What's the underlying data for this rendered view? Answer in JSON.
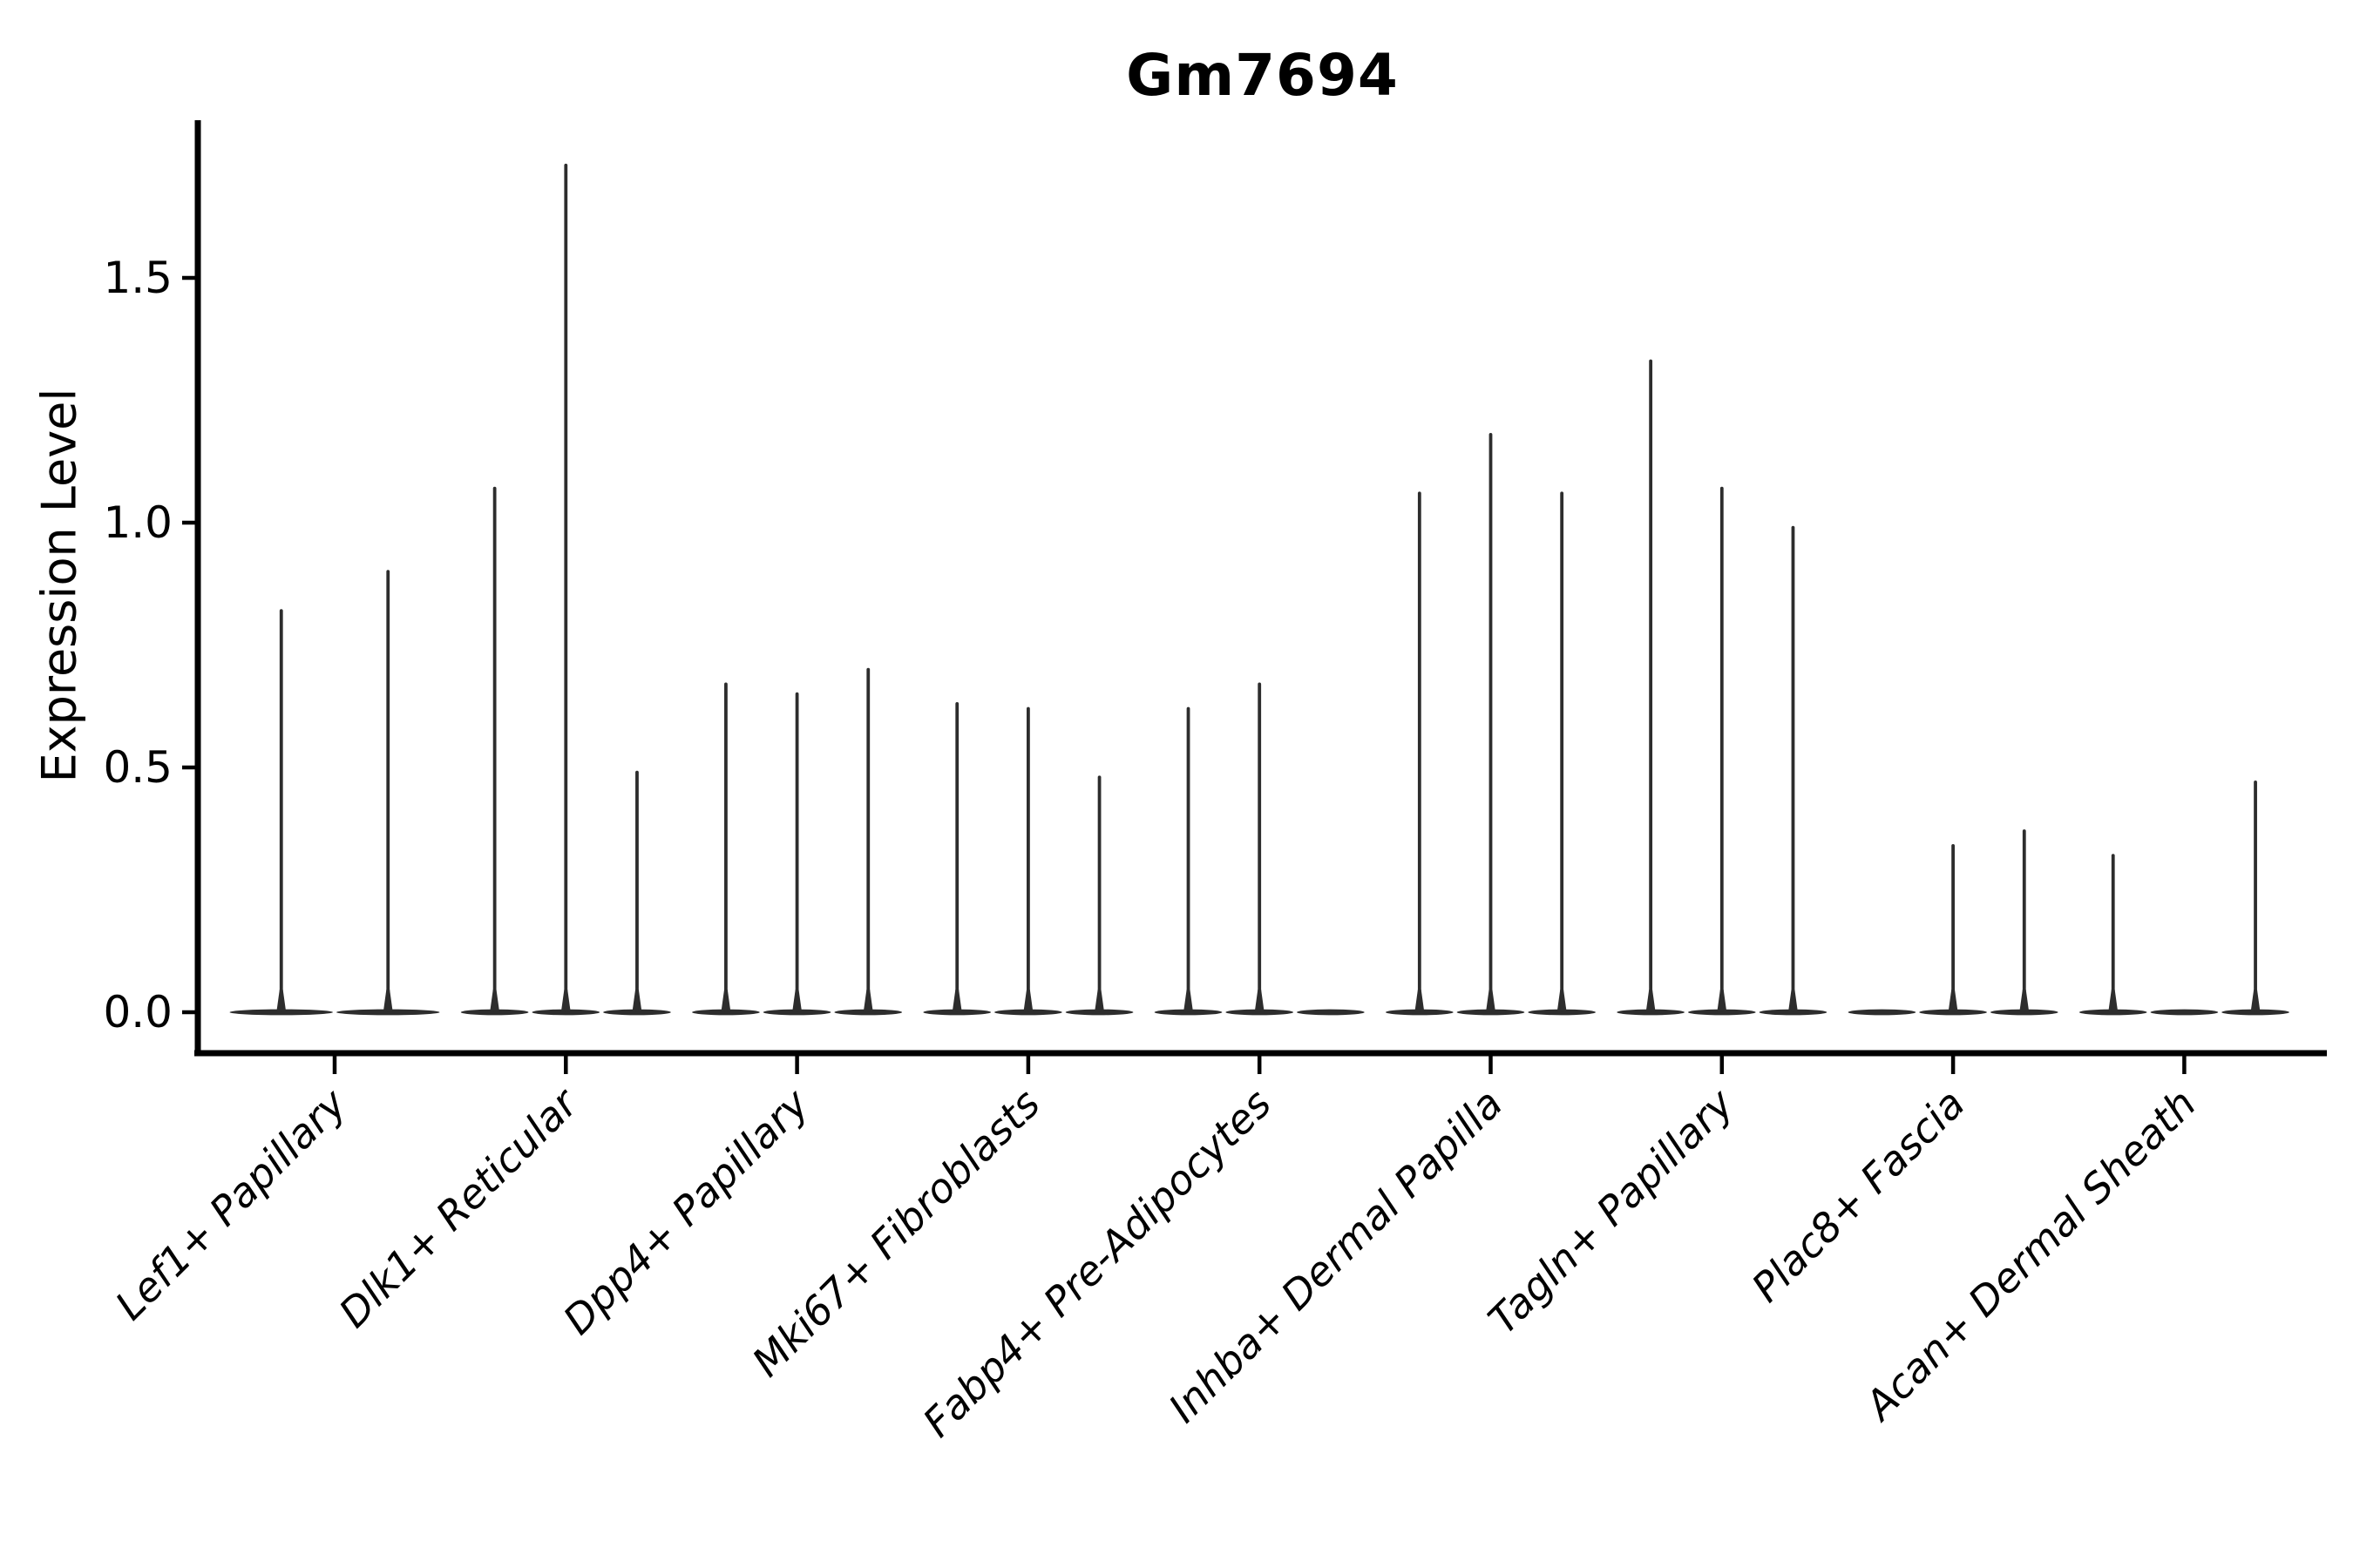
{
  "title": "Gm7694",
  "chart_data": {
    "type": "violin",
    "title": "Gm7694",
    "ylabel": "Expression Level",
    "xlabel": "",
    "ylim": [
      0,
      1.82
    ],
    "ytick_values": [
      0,
      0.5,
      1.0,
      1.5
    ],
    "ytick_labels": [
      "0.0",
      "0.5",
      "1.0",
      "1.5"
    ],
    "grid": false,
    "legend": "none",
    "categories": [
      "Lef1+ Papillary",
      "Dlk1+ Reticular",
      "Dpp4+ Papillary",
      "Mki67+ Fibroblasts",
      "Fabp4+ Pre-Adipocytes",
      "Inhba+ Dermal Papilla",
      "Tagln+ Papillary",
      "Plac8+ Fascia",
      "Acan+ Dermal Sheath"
    ],
    "violin_maxima_per_category": [
      [
        0.82,
        0.9
      ],
      [
        1.07,
        1.73,
        0.49
      ],
      [
        0.67,
        0.65,
        0.7
      ],
      [
        0.63,
        0.62,
        0.48
      ],
      [
        0.62,
        0.67,
        0.0
      ],
      [
        1.06,
        1.18,
        1.06
      ],
      [
        1.33,
        1.07,
        0.99
      ],
      [
        0.0,
        0.34,
        0.37
      ],
      [
        0.32,
        0.0,
        0.47
      ]
    ]
  },
  "colors": {
    "ink": "#000000",
    "violin": "#2d2d2d",
    "background": "#ffffff"
  }
}
